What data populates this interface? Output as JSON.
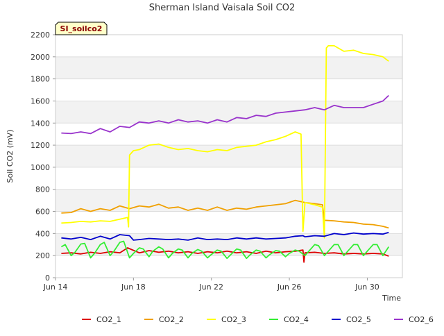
{
  "chart_data": {
    "type": "line",
    "title": "Sherman Island Vaisala Soil CO2",
    "badge": "SI_soilco2",
    "xlabel": "Time",
    "ylabel": "Soil CO2 (mV)",
    "ylim": [
      0,
      2200
    ],
    "yticks": [
      0,
      200,
      400,
      600,
      800,
      1000,
      1200,
      1400,
      1600,
      1800,
      2000,
      2200
    ],
    "xlim": [
      14.0,
      31.8
    ],
    "xticks": [
      {
        "value": 14,
        "label": "Jun 14"
      },
      {
        "value": 18,
        "label": "Jun 18"
      },
      {
        "value": 22,
        "label": "Jun 22"
      },
      {
        "value": 26,
        "label": "Jun 26"
      },
      {
        "value": 30,
        "label": "Jun 30"
      }
    ],
    "grid": true,
    "legend_position": "bottom",
    "x_unit": "day of June",
    "series": [
      {
        "name": "CO2_1",
        "color": "#dd0000",
        "x": [
          14.3,
          14.8,
          15.3,
          15.8,
          16.3,
          16.8,
          17.3,
          17.7,
          18.3,
          18.8,
          19.3,
          19.8,
          20.3,
          20.8,
          21.3,
          21.8,
          22.3,
          22.8,
          23.3,
          23.8,
          24.3,
          24.8,
          25.3,
          25.8,
          26.3,
          26.7,
          26.75,
          26.8,
          27.3,
          27.8,
          28.3,
          28.8,
          29.3,
          29.8,
          30.3,
          30.8,
          31.1
        ],
        "y": [
          220,
          225,
          215,
          230,
          220,
          235,
          225,
          270,
          225,
          245,
          230,
          240,
          225,
          235,
          220,
          235,
          225,
          240,
          225,
          235,
          220,
          240,
          225,
          235,
          240,
          250,
          140,
          225,
          230,
          220,
          225,
          215,
          220,
          215,
          220,
          215,
          195
        ]
      },
      {
        "name": "CO2_2",
        "color": "#f0a000",
        "x": [
          14.3,
          14.8,
          15.3,
          15.8,
          16.3,
          16.8,
          17.3,
          17.8,
          18.3,
          18.8,
          19.3,
          19.8,
          20.3,
          20.8,
          21.3,
          21.8,
          22.3,
          22.8,
          23.3,
          23.8,
          24.3,
          24.8,
          25.3,
          25.8,
          26.3,
          26.8,
          27.3,
          27.7,
          27.8,
          28.3,
          28.8,
          29.3,
          29.8,
          30.3,
          30.8,
          31.1
        ],
        "y": [
          585,
          590,
          625,
          600,
          625,
          610,
          650,
          625,
          650,
          640,
          665,
          630,
          640,
          610,
          630,
          610,
          640,
          610,
          630,
          620,
          640,
          650,
          660,
          670,
          700,
          680,
          670,
          660,
          520,
          515,
          505,
          500,
          485,
          480,
          465,
          450
        ]
      },
      {
        "name": "CO2_3",
        "color": "#ffff00",
        "x": [
          14.3,
          14.8,
          15.3,
          15.8,
          16.3,
          16.8,
          17.3,
          17.7,
          17.75,
          17.8,
          18.0,
          18.3,
          18.8,
          19.3,
          19.8,
          20.3,
          20.8,
          21.3,
          21.8,
          22.3,
          22.8,
          23.3,
          23.8,
          24.3,
          24.8,
          25.3,
          25.8,
          26.3,
          26.6,
          26.7,
          26.8,
          27.3,
          27.7,
          27.8,
          27.9,
          28.0,
          28.3,
          28.8,
          29.3,
          29.8,
          30.3,
          30.8,
          31.1
        ],
        "y": [
          495,
          500,
          510,
          505,
          515,
          510,
          530,
          545,
          460,
          1110,
          1150,
          1160,
          1200,
          1210,
          1180,
          1160,
          1170,
          1150,
          1140,
          1160,
          1150,
          1180,
          1190,
          1200,
          1230,
          1250,
          1280,
          1320,
          1300,
          420,
          680,
          660,
          640,
          360,
          2080,
          2100,
          2100,
          2050,
          2060,
          2030,
          2020,
          2000,
          1960
        ]
      },
      {
        "name": "CO2_4",
        "color": "#33ee33",
        "x": [
          14.3,
          14.5,
          14.8,
          15.0,
          15.3,
          15.5,
          15.8,
          16.0,
          16.3,
          16.5,
          16.8,
          17.0,
          17.3,
          17.5,
          17.8,
          18.0,
          18.3,
          18.5,
          18.8,
          19.0,
          19.3,
          19.5,
          19.8,
          20.0,
          20.3,
          20.5,
          20.8,
          21.0,
          21.3,
          21.5,
          21.8,
          22.0,
          22.3,
          22.5,
          22.8,
          23.0,
          23.3,
          23.5,
          23.8,
          24.0,
          24.3,
          24.5,
          24.8,
          25.0,
          25.3,
          25.5,
          25.8,
          26.0,
          26.3,
          26.5,
          26.8,
          27.0,
          27.3,
          27.5,
          27.8,
          28.0,
          28.3,
          28.5,
          28.8,
          29.0,
          29.3,
          29.5,
          29.8,
          30.0,
          30.3,
          30.5,
          30.8,
          31.1
        ],
        "y": [
          280,
          300,
          200,
          230,
          305,
          310,
          180,
          220,
          300,
          320,
          200,
          240,
          320,
          330,
          180,
          220,
          270,
          260,
          190,
          240,
          280,
          260,
          180,
          220,
          260,
          250,
          180,
          220,
          255,
          240,
          180,
          210,
          250,
          240,
          175,
          210,
          260,
          250,
          175,
          210,
          250,
          240,
          180,
          210,
          245,
          240,
          190,
          220,
          250,
          240,
          200,
          240,
          300,
          290,
          200,
          240,
          300,
          300,
          200,
          240,
          300,
          300,
          200,
          240,
          300,
          300,
          200,
          280
        ]
      },
      {
        "name": "CO2_5",
        "color": "#0000cc",
        "x": [
          14.3,
          14.8,
          15.3,
          15.8,
          16.3,
          16.8,
          17.3,
          17.8,
          18.0,
          18.3,
          18.8,
          19.3,
          19.8,
          20.3,
          20.8,
          21.3,
          21.8,
          22.3,
          22.8,
          23.3,
          23.8,
          24.3,
          24.8,
          25.3,
          25.8,
          26.3,
          26.7,
          26.8,
          27.3,
          27.8,
          28.3,
          28.8,
          29.3,
          29.8,
          30.3,
          30.8,
          31.1
        ],
        "y": [
          360,
          350,
          365,
          345,
          375,
          350,
          390,
          380,
          340,
          345,
          355,
          350,
          345,
          350,
          340,
          360,
          345,
          350,
          345,
          360,
          350,
          360,
          350,
          355,
          360,
          375,
          380,
          370,
          380,
          375,
          400,
          390,
          405,
          395,
          400,
          395,
          410
        ]
      },
      {
        "name": "CO2_6",
        "color": "#9933cc",
        "x": [
          14.3,
          14.8,
          15.3,
          15.8,
          16.3,
          16.8,
          17.3,
          17.8,
          18.3,
          18.8,
          19.3,
          19.8,
          20.3,
          20.8,
          21.3,
          21.8,
          22.3,
          22.8,
          23.3,
          23.8,
          24.3,
          24.8,
          25.3,
          25.8,
          26.3,
          26.8,
          27.3,
          27.8,
          28.3,
          28.8,
          29.3,
          29.8,
          30.3,
          30.8,
          31.1
        ],
        "y": [
          1310,
          1305,
          1320,
          1305,
          1350,
          1320,
          1370,
          1360,
          1410,
          1400,
          1420,
          1400,
          1430,
          1410,
          1420,
          1400,
          1430,
          1410,
          1450,
          1440,
          1470,
          1460,
          1490,
          1500,
          1510,
          1520,
          1540,
          1520,
          1560,
          1540,
          1540,
          1540,
          1570,
          1600,
          1650
        ]
      }
    ]
  }
}
